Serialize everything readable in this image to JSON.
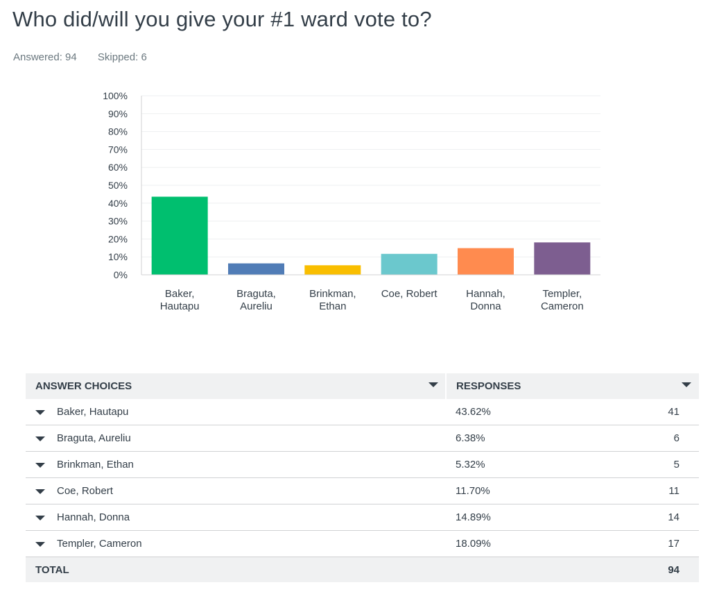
{
  "question": {
    "title": "Who did/will you give your #1 ward vote to?",
    "answered_label": "Answered: 94",
    "skipped_label": "Skipped: 6"
  },
  "chart_data": {
    "type": "bar",
    "categories": [
      [
        "Baker,",
        "Hautapu"
      ],
      [
        "Braguta,",
        "Aureliu"
      ],
      [
        "Brinkman,",
        "Ethan"
      ],
      [
        "Coe, Robert"
      ],
      [
        "Hannah,",
        "Donna"
      ],
      [
        "Templer,",
        "Cameron"
      ]
    ],
    "values": [
      43.62,
      6.38,
      5.32,
      11.7,
      14.89,
      18.09
    ],
    "colors": [
      "#00bf6f",
      "#507cb6",
      "#f9be00",
      "#6bc8cd",
      "#ff8b4f",
      "#7d5e90"
    ],
    "ylim": [
      0,
      100
    ],
    "y_ticks": [
      "0%",
      "10%",
      "20%",
      "30%",
      "40%",
      "50%",
      "60%",
      "70%",
      "80%",
      "90%",
      "100%"
    ],
    "grid": true,
    "legend": "none"
  },
  "table": {
    "header_answer": "ANSWER CHOICES",
    "header_responses": "RESPONSES",
    "rows": [
      {
        "choice": "Baker, Hautapu",
        "percent": "43.62%",
        "count": "41"
      },
      {
        "choice": "Braguta, Aureliu",
        "percent": "6.38%",
        "count": "6"
      },
      {
        "choice": "Brinkman, Ethan",
        "percent": "5.32%",
        "count": "5"
      },
      {
        "choice": "Coe, Robert",
        "percent": "11.70%",
        "count": "11"
      },
      {
        "choice": "Hannah, Donna",
        "percent": "14.89%",
        "count": "14"
      },
      {
        "choice": "Templer, Cameron",
        "percent": "18.09%",
        "count": "17"
      }
    ],
    "total_label": "TOTAL",
    "total_count": "94"
  },
  "icons": {
    "sort": "caret-down-icon",
    "row_expand": "caret-down-icon"
  }
}
